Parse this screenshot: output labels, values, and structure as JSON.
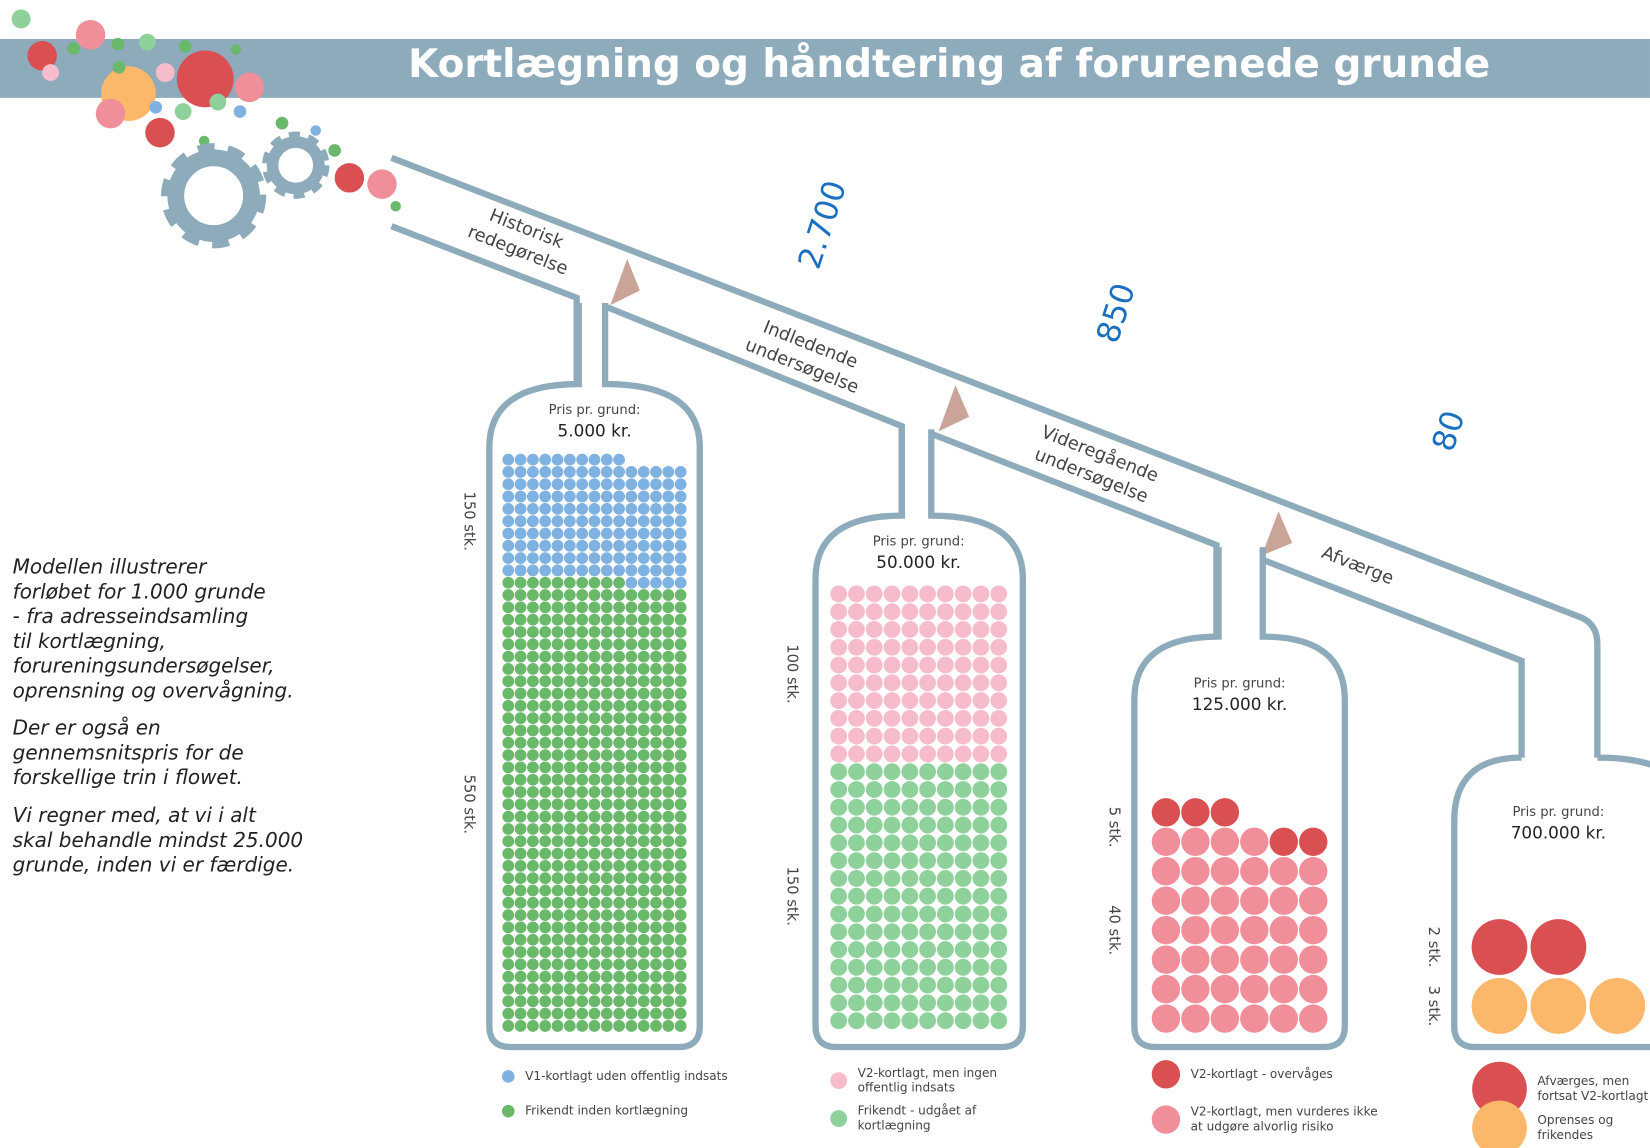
{
  "title": "Kortlægning og håndtering af forurenede grunde",
  "intro": [
    [
      "Modellen illustrerer",
      "forløbet for 1.000 grunde",
      "- fra adresseindsamling",
      "til kortlægning,",
      "forureningsundersøgelser,",
      "oprensning og overvågning."
    ],
    [
      "Der er også en",
      "gennemsnitspris for de",
      "forskellige trin i flowet."
    ],
    [
      "Vi regner med, at vi i alt",
      "skal behandle mindst 25.000",
      "grunde, inden vi er færdige."
    ]
  ],
  "stages": [
    {
      "label": [
        "Historisk",
        "redegørelse"
      ]
    },
    {
      "label": [
        "Indledende",
        "undersøgelse"
      ]
    },
    {
      "label": [
        "Videregående",
        "undersøgelse"
      ]
    },
    {
      "label": [
        "Afværge"
      ]
    }
  ],
  "flows": [
    "2.700",
    "850",
    "80"
  ],
  "flasks": [
    {
      "price_caption": "Pris pr. grund:",
      "price": "5.000 kr.",
      "groups": [
        {
          "count": 150,
          "label": "150 stk.",
          "color": "#7fb2e0",
          "legend": [
            "V1-kortlagt uden offentlig indsats"
          ]
        },
        {
          "count": 550,
          "label": "550 stk.",
          "color": "#6ab86a",
          "legend": [
            "Frikendt inden kortlægning"
          ]
        }
      ]
    },
    {
      "price_caption": "Pris pr. grund:",
      "price": "50.000 kr.",
      "groups": [
        {
          "count": 100,
          "label": "100 stk.",
          "color": "#f7bccb",
          "legend": [
            "V2-kortlagt, men ingen",
            "offentlig indsats"
          ]
        },
        {
          "count": 150,
          "label": "150 stk.",
          "color": "#8ed19a",
          "legend": [
            "Frikendt - udgået af",
            "kortlægning"
          ]
        }
      ]
    },
    {
      "price_caption": "Pris pr. grund:",
      "price": "125.000 kr.",
      "groups": [
        {
          "count": 5,
          "label": "5 stk.",
          "color": "#d94f52",
          "legend": [
            "V2-kortlagt - overvåges"
          ]
        },
        {
          "count": 40,
          "label": "40 stk.",
          "color": "#f08f99",
          "legend": [
            "V2-kortlagt, men vurderes ikke",
            "at udgøre alvorlig risiko"
          ]
        }
      ]
    },
    {
      "price_caption": "Pris pr. grund:",
      "price": "700.000 kr.",
      "groups": [
        {
          "count": 2,
          "label": "2 stk.",
          "color": "#d94f52",
          "legend": [
            "Afværges, men",
            "fortsat V2-kortlagt"
          ]
        },
        {
          "count": 3,
          "label": "3 stk.",
          "color": "#fbb86a",
          "legend": [
            "Oprenses og",
            "frikendes"
          ]
        }
      ]
    }
  ]
}
